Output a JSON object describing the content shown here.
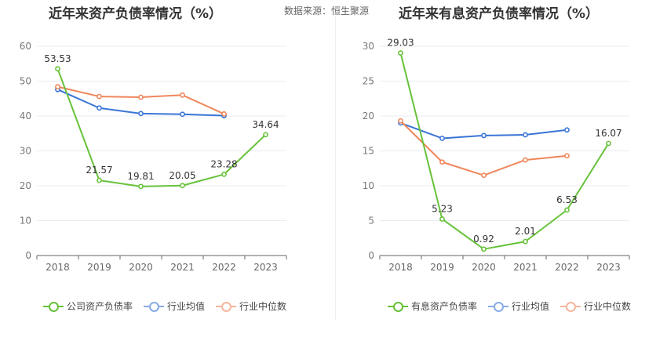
{
  "header": {
    "title_left": "近年来资产负债率情况（%）",
    "source": "数据来源：恒生聚源",
    "title_right": "近年来有息资产负债率情况（%）"
  },
  "colors": {
    "company": "#67c23a",
    "industry_avg": "#3a75d6",
    "industry_median": "#f0865a",
    "grid": "#e8ecf3",
    "axis": "#666666"
  },
  "chart_data": [
    {
      "type": "line",
      "title": "近年来资产负债率情况（%）",
      "categories": [
        "2018",
        "2019",
        "2020",
        "2021",
        "2022",
        "2023"
      ],
      "ylim": [
        0,
        60
      ],
      "yticks": [
        0,
        10,
        20,
        30,
        40,
        50,
        60
      ],
      "grid": true,
      "legend_position": "bottom",
      "series": [
        {
          "name": "公司资产负债率",
          "key": "company",
          "values": [
            53.53,
            21.57,
            19.81,
            20.05,
            23.28,
            34.64
          ],
          "labeled": true
        },
        {
          "name": "行业均值",
          "key": "industry_avg",
          "values": [
            47.6,
            42.3,
            40.7,
            40.5,
            40.1,
            null
          ],
          "labeled": false
        },
        {
          "name": "行业中位数",
          "key": "industry_median",
          "values": [
            48.4,
            45.6,
            45.4,
            46.0,
            40.6,
            null
          ],
          "labeled": false
        }
      ]
    },
    {
      "type": "line",
      "title": "近年来有息资产负债率情况（%）",
      "categories": [
        "2018",
        "2019",
        "2020",
        "2021",
        "2022",
        "2023"
      ],
      "ylim": [
        0,
        30
      ],
      "yticks": [
        0,
        5,
        10,
        15,
        20,
        25,
        30
      ],
      "grid": true,
      "legend_position": "bottom",
      "series": [
        {
          "name": "有息资产负债率",
          "key": "company",
          "values": [
            29.03,
            5.23,
            0.92,
            2.01,
            6.53,
            16.07
          ],
          "labeled": true
        },
        {
          "name": "行业均值",
          "key": "industry_avg",
          "values": [
            19.0,
            16.8,
            17.2,
            17.3,
            18.0,
            null
          ],
          "labeled": false
        },
        {
          "name": "行业中位数",
          "key": "industry_median",
          "values": [
            19.3,
            13.4,
            11.5,
            13.7,
            14.3,
            null
          ],
          "labeled": false
        }
      ]
    }
  ]
}
